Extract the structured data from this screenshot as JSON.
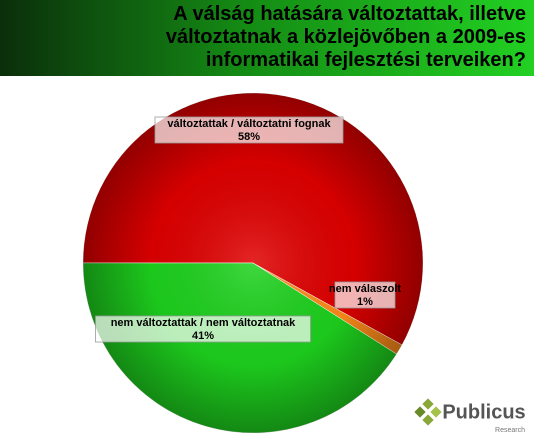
{
  "chart_data": {
    "type": "pie",
    "title": "A válság hatására változtattak, illetve változtatnak a közlejövőben a 2009-es informatikai fejlesztési terveiken?",
    "categories": [
      "változtattak / változtatni fognak",
      "nem válaszolt",
      "nem változtattak / nem változtatnak"
    ],
    "values": [
      58,
      1,
      41
    ],
    "value_labels": [
      "58%",
      "1%",
      "41%"
    ],
    "colors": [
      "#e00000",
      "#ff8c1a",
      "#1ed21e"
    ]
  },
  "logo": {
    "name": "Publicus",
    "tagline": "Research"
  }
}
